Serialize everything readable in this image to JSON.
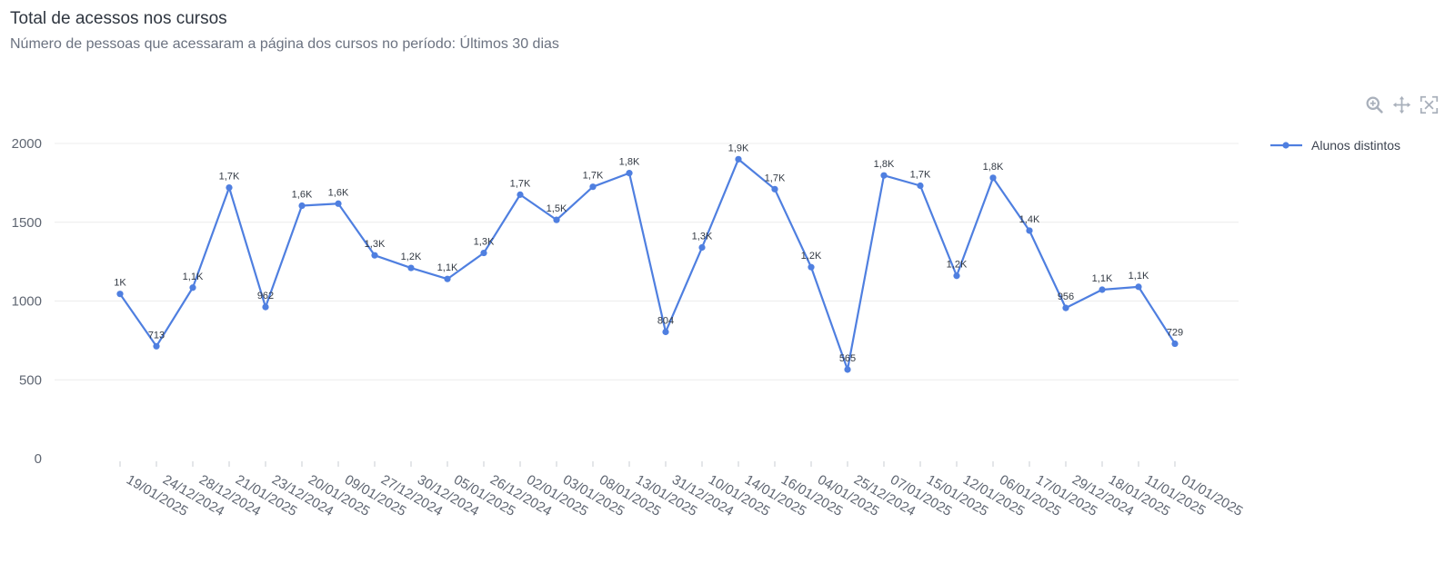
{
  "header": {
    "title": "Total de acessos nos cursos",
    "subtitle": "Número de pessoas que acessaram a página dos cursos no período: Últimos 30 dias"
  },
  "toolbar": {
    "icons": [
      "zoom-in-icon",
      "pan-icon",
      "reset-zoom-icon"
    ]
  },
  "colors": {
    "series": "#4f7fe0",
    "grid": "#ececec",
    "text": "#5f6672"
  },
  "chart_data": {
    "type": "line",
    "title": "Total de acessos nos cursos",
    "subtitle": "Número de pessoas que acessaram a página dos cursos no período: Últimos 30 dias",
    "xlabel": "",
    "ylabel": "",
    "ylim": [
      0,
      2000
    ],
    "yticks": [
      0,
      500,
      1000,
      1500,
      2000
    ],
    "grid": true,
    "legend": "right",
    "categories": [
      "19/01/2025",
      "24/12/2024",
      "28/12/2024",
      "21/01/2025",
      "23/12/2024",
      "20/01/2025",
      "09/01/2025",
      "27/12/2024",
      "30/12/2024",
      "05/01/2025",
      "26/12/2024",
      "02/01/2025",
      "03/01/2025",
      "08/01/2025",
      "13/01/2025",
      "31/12/2024",
      "10/01/2025",
      "14/01/2025",
      "16/01/2025",
      "04/01/2025",
      "25/12/2024",
      "07/01/2025",
      "15/01/2025",
      "12/01/2025",
      "06/01/2025",
      "17/01/2025",
      "29/12/2024",
      "18/01/2025",
      "11/01/2025",
      "01/01/2025"
    ],
    "series": [
      {
        "name": "Alunos distintos",
        "values": [
          1045,
          713,
          1085,
          1720,
          962,
          1605,
          1618,
          1290,
          1210,
          1140,
          1305,
          1675,
          1515,
          1725,
          1812,
          804,
          1340,
          1900,
          1710,
          1215,
          565,
          1797,
          1732,
          1160,
          1782,
          1447,
          956,
          1072,
          1090,
          729
        ],
        "labels": [
          "1K",
          "713",
          "1,1K",
          "1,7K",
          "962",
          "1,6K",
          "1,6K",
          "1,3K",
          "1,2K",
          "1,1K",
          "1,3K",
          "1,7K",
          "1,5K",
          "1,7K",
          "1,8K",
          "804",
          "1,3K",
          "1,9K",
          "1,7K",
          "1,2K",
          "565",
          "1,8K",
          "1,7K",
          "1,2K",
          "1,8K",
          "1,4K",
          "956",
          "1,1K",
          "1,1K",
          "729"
        ]
      }
    ]
  }
}
